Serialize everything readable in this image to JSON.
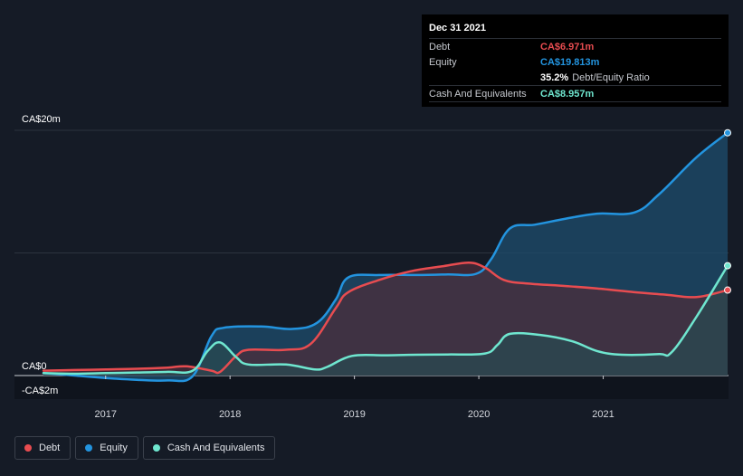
{
  "tooltip": {
    "date": "Dec 31 2021",
    "rows": [
      {
        "label": "Debt",
        "value": "CA$6.971m",
        "color": "#e84c50"
      },
      {
        "label": "Equity",
        "value": "CA$19.813m",
        "color": "#2394df"
      },
      {
        "label": "",
        "value": "35.2%",
        "suffix": "Debt/Equity Ratio",
        "color": "#ffffff"
      },
      {
        "label": "Cash And Equivalents",
        "value": "CA$8.957m",
        "color": "#6fe6cf"
      }
    ]
  },
  "legend": [
    {
      "label": "Debt",
      "color": "#e84c50"
    },
    {
      "label": "Equity",
      "color": "#2394df"
    },
    {
      "label": "Cash And Equivalents",
      "color": "#6fe6cf"
    }
  ],
  "chart_data": {
    "type": "area",
    "y_unit": "CA$m",
    "ylim": [
      -2,
      20
    ],
    "y_tick_labels": [
      {
        "value": 20,
        "label": "CA$20m"
      },
      {
        "value": 0,
        "label": "CA$0"
      },
      {
        "value": -2,
        "label": "-CA$2m"
      }
    ],
    "xlim": [
      2016.5,
      2022.0
    ],
    "x_tick_labels": [
      "2017",
      "2018",
      "2019",
      "2020",
      "2021"
    ],
    "x_tick_values": [
      2017,
      2018,
      2019,
      2020,
      2021
    ],
    "grid": true,
    "legend_position": "bottom-left",
    "series": [
      {
        "name": "Equity",
        "color": "#2394df",
        "fill": "#1e4d6e",
        "points": [
          [
            2016.5,
            0.2
          ],
          [
            2016.75,
            0.0
          ],
          [
            2017.0,
            -0.2
          ],
          [
            2017.25,
            -0.35
          ],
          [
            2017.5,
            -0.4
          ],
          [
            2017.7,
            -0.05
          ],
          [
            2017.85,
            3.2
          ],
          [
            2017.95,
            3.9
          ],
          [
            2018.25,
            4.0
          ],
          [
            2018.5,
            3.8
          ],
          [
            2018.7,
            4.3
          ],
          [
            2018.85,
            6.2
          ],
          [
            2018.95,
            8.0
          ],
          [
            2019.2,
            8.2
          ],
          [
            2019.5,
            8.2
          ],
          [
            2019.75,
            8.25
          ],
          [
            2019.98,
            8.3
          ],
          [
            2020.1,
            9.5
          ],
          [
            2020.25,
            12.0
          ],
          [
            2020.45,
            12.3
          ],
          [
            2020.7,
            12.8
          ],
          [
            2020.95,
            13.2
          ],
          [
            2021.25,
            13.3
          ],
          [
            2021.45,
            14.8
          ],
          [
            2021.75,
            17.8
          ],
          [
            2022.0,
            19.8
          ]
        ]
      },
      {
        "name": "Debt",
        "color": "#e84c50",
        "fill": "#4c2e3b",
        "points": [
          [
            2016.5,
            0.4
          ],
          [
            2016.75,
            0.45
          ],
          [
            2017.0,
            0.5
          ],
          [
            2017.25,
            0.55
          ],
          [
            2017.5,
            0.65
          ],
          [
            2017.65,
            0.75
          ],
          [
            2017.85,
            0.4
          ],
          [
            2017.92,
            0.3
          ],
          [
            2018.05,
            1.6
          ],
          [
            2018.15,
            2.1
          ],
          [
            2018.45,
            2.1
          ],
          [
            2018.65,
            2.6
          ],
          [
            2018.85,
            5.5
          ],
          [
            2018.95,
            6.8
          ],
          [
            2019.2,
            7.8
          ],
          [
            2019.45,
            8.5
          ],
          [
            2019.7,
            8.9
          ],
          [
            2019.92,
            9.2
          ],
          [
            2020.05,
            8.8
          ],
          [
            2020.2,
            7.8
          ],
          [
            2020.4,
            7.5
          ],
          [
            2020.7,
            7.3
          ],
          [
            2020.95,
            7.1
          ],
          [
            2021.25,
            6.8
          ],
          [
            2021.5,
            6.6
          ],
          [
            2021.75,
            6.4
          ],
          [
            2022.0,
            6.97
          ]
        ]
      },
      {
        "name": "Cash And Equivalents",
        "color": "#6fe6cf",
        "fill": "#2a4a50",
        "points": [
          [
            2016.5,
            0.2
          ],
          [
            2016.75,
            0.15
          ],
          [
            2017.0,
            0.2
          ],
          [
            2017.25,
            0.25
          ],
          [
            2017.5,
            0.3
          ],
          [
            2017.7,
            0.4
          ],
          [
            2017.82,
            2.0
          ],
          [
            2017.92,
            2.7
          ],
          [
            2018.05,
            1.5
          ],
          [
            2018.15,
            0.9
          ],
          [
            2018.45,
            0.9
          ],
          [
            2018.68,
            0.5
          ],
          [
            2018.78,
            0.7
          ],
          [
            2018.98,
            1.6
          ],
          [
            2019.25,
            1.65
          ],
          [
            2019.5,
            1.7
          ],
          [
            2019.75,
            1.72
          ],
          [
            2020.05,
            1.8
          ],
          [
            2020.15,
            2.5
          ],
          [
            2020.25,
            3.4
          ],
          [
            2020.5,
            3.3
          ],
          [
            2020.75,
            2.8
          ],
          [
            2020.95,
            2.0
          ],
          [
            2021.15,
            1.7
          ],
          [
            2021.45,
            1.75
          ],
          [
            2021.55,
            1.9
          ],
          [
            2021.75,
            4.8
          ],
          [
            2022.0,
            8.96
          ]
        ]
      }
    ]
  }
}
